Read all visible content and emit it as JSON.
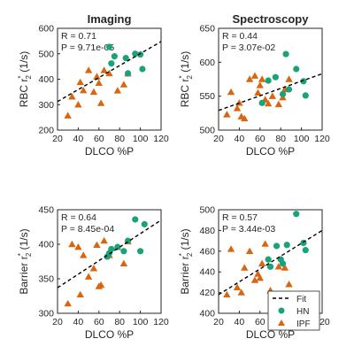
{
  "colors": {
    "hn": "#1aa37a",
    "ipf": "#d9650f",
    "fit": "#000000"
  },
  "legend": {
    "fit": "Fit",
    "hn": "HN",
    "ipf": "IPF"
  },
  "chart_data": [
    {
      "type": "scatter",
      "title": "Imaging",
      "xlabel": "DLCO %P",
      "ylabel_main": "RBC r",
      "ylabel_sup": "*",
      "ylabel_sub": "2",
      "ylabel_unit": " (1/s)",
      "xlim": [
        20,
        120
      ],
      "ylim": [
        200,
        600
      ],
      "xticks": [
        20,
        40,
        60,
        80,
        100,
        120
      ],
      "yticks": [
        200,
        300,
        400,
        500,
        600
      ],
      "stats": {
        "r": "R = 0.71",
        "p": "P = 9.71e-05"
      },
      "fit_line": {
        "x": [
          20,
          120
        ],
        "y": [
          312,
          548
        ]
      },
      "series": [
        {
          "name": "HN",
          "marker": "circle",
          "x": [
            70,
            72,
            75,
            86,
            88,
            95,
            100,
            102
          ],
          "y": [
            527,
            462,
            490,
            483,
            423,
            500,
            497,
            440
          ]
        },
        {
          "name": "IPF",
          "marker": "triangle",
          "x": [
            30,
            34,
            40,
            42,
            45,
            50,
            55,
            58,
            60,
            62,
            65,
            70,
            78,
            84,
            88
          ],
          "y": [
            257,
            331,
            300,
            388,
            356,
            435,
            350,
            410,
            385,
            306,
            435,
            423,
            355,
            379,
            422
          ]
        }
      ]
    },
    {
      "type": "scatter",
      "title": "Spectroscopy",
      "xlabel": "DLCO %P",
      "ylabel_main": "RBC r",
      "ylabel_sup": "*",
      "ylabel_sub": "2",
      "ylabel_unit": " (1/s)",
      "xlim": [
        20,
        120
      ],
      "ylim": [
        500,
        650
      ],
      "xticks": [
        20,
        40,
        60,
        80,
        100,
        120
      ],
      "yticks": [
        500,
        550,
        600,
        650
      ],
      "stats": {
        "r": "R = 0.44",
        "p": "P = 3.07e-02"
      },
      "fit_line": {
        "x": [
          20,
          120
        ],
        "y": [
          529,
          583
        ]
      },
      "series": [
        {
          "name": "HN",
          "marker": "circle",
          "x": [
            62,
            68,
            75,
            82,
            85,
            88,
            95,
            102,
            104
          ],
          "y": [
            540,
            573,
            578,
            553,
            612,
            560,
            590,
            572,
            551
          ]
        },
        {
          "name": "IPF",
          "marker": "triangle",
          "x": [
            28,
            32,
            38,
            40,
            42,
            45,
            50,
            55,
            58,
            60,
            62,
            65,
            68,
            72,
            78,
            82,
            84,
            88
          ],
          "y": [
            523,
            556,
            532,
            540,
            520,
            517,
            575,
            580,
            555,
            566,
            575,
            545,
            539,
            550,
            538,
            548,
            560,
            575
          ]
        }
      ]
    },
    {
      "type": "scatter",
      "title": "",
      "xlabel": "DLCO %P",
      "ylabel_main": "Barrier r",
      "ylabel_sup": "*",
      "ylabel_sub": "2",
      "ylabel_unit": " (1/s)",
      "xlim": [
        20,
        120
      ],
      "ylim": [
        300,
        450
      ],
      "xticks": [
        20,
        40,
        60,
        80,
        100,
        120
      ],
      "yticks": [
        300,
        350,
        400,
        450
      ],
      "stats": {
        "r": "R = 0.64",
        "p": "P = 8.45e-04"
      },
      "fit_line": {
        "x": [
          20,
          120
        ],
        "y": [
          337,
          435
        ]
      },
      "series": [
        {
          "name": "HN",
          "marker": "circle",
          "x": [
            68,
            70,
            72,
            78,
            84,
            88,
            95,
            100,
            104
          ],
          "y": [
            382,
            387,
            393,
            396,
            390,
            405,
            436,
            390,
            429
          ]
        },
        {
          "name": "IPF",
          "marker": "triangle",
          "x": [
            30,
            34,
            40,
            42,
            45,
            50,
            55,
            58,
            60,
            62,
            65,
            70,
            78,
            84,
            88
          ],
          "y": [
            314,
            400,
            396,
            327,
            384,
            353,
            365,
            399,
            339,
            341,
            405,
            384,
            396,
            372,
            404
          ]
        }
      ]
    },
    {
      "type": "scatter",
      "title": "",
      "xlabel": "DLCO %P",
      "ylabel_main": "Barrier r",
      "ylabel_sup": "*",
      "ylabel_sub": "2",
      "ylabel_unit": " (1/s)",
      "xlim": [
        20,
        120
      ],
      "ylim": [
        400,
        500
      ],
      "xticks": [
        20,
        40,
        60,
        80,
        100,
        120
      ],
      "yticks": [
        400,
        420,
        440,
        460,
        480,
        500
      ],
      "stats": {
        "r": "R = 0.57",
        "p": "P = 3.44e-03"
      },
      "fit_line": {
        "x": [
          20,
          120
        ],
        "y": [
          418,
          480
        ]
      },
      "series": [
        {
          "name": "HN",
          "marker": "circle",
          "x": [
            68,
            70,
            76,
            80,
            82,
            86,
            95,
            102,
            104
          ],
          "y": [
            452,
            445,
            465,
            452,
            448,
            466,
            496,
            468,
            461
          ]
        },
        {
          "name": "IPF",
          "marker": "triangle",
          "x": [
            28,
            32,
            38,
            42,
            45,
            50,
            55,
            58,
            60,
            62,
            65,
            70,
            78,
            84,
            88
          ],
          "y": [
            418,
            462,
            425,
            420,
            444,
            460,
            432,
            438,
            434,
            448,
            467,
            422,
            445,
            444,
            428
          ]
        }
      ]
    }
  ]
}
